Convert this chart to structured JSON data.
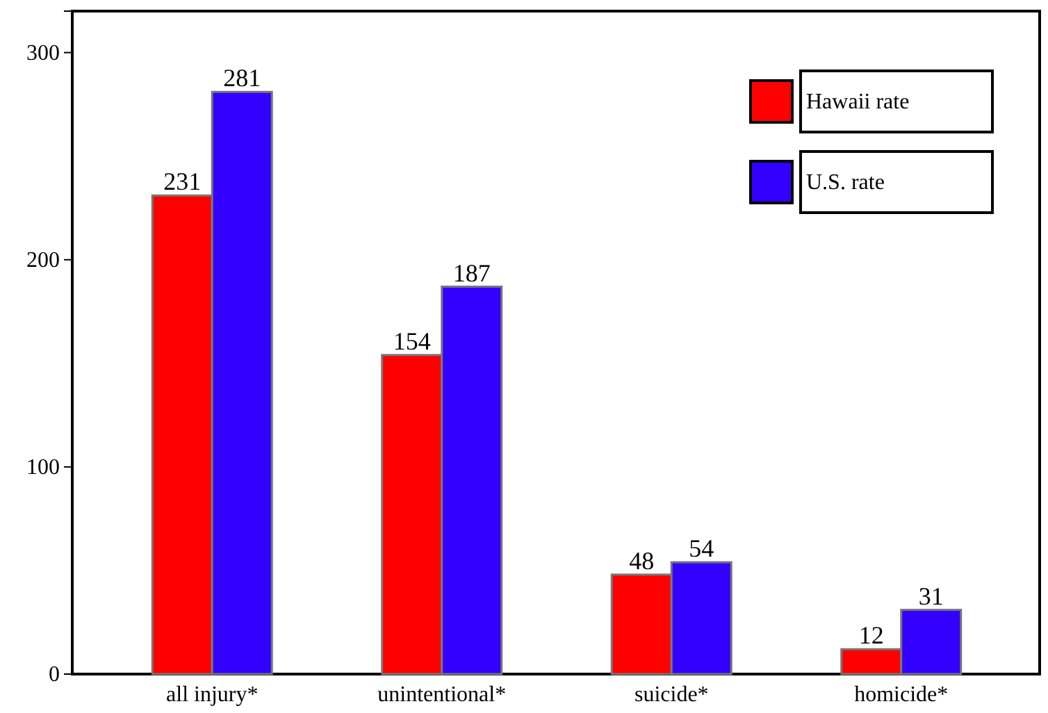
{
  "chart_data": {
    "type": "bar",
    "categories": [
      "all injury*",
      "unintentional*",
      "suicide*",
      "homicide*"
    ],
    "series": [
      {
        "name": "Hawaii rate",
        "color": "#ff0000",
        "values": [
          231,
          154,
          48,
          12
        ]
      },
      {
        "name": "U.S. rate",
        "color": "#3300ff",
        "values": [
          281,
          187,
          54,
          31
        ]
      }
    ],
    "ylim": [
      0,
      320
    ],
    "yticks": [
      0,
      100,
      200,
      300
    ],
    "data_labels": true,
    "grid": false,
    "legend": "top right"
  }
}
